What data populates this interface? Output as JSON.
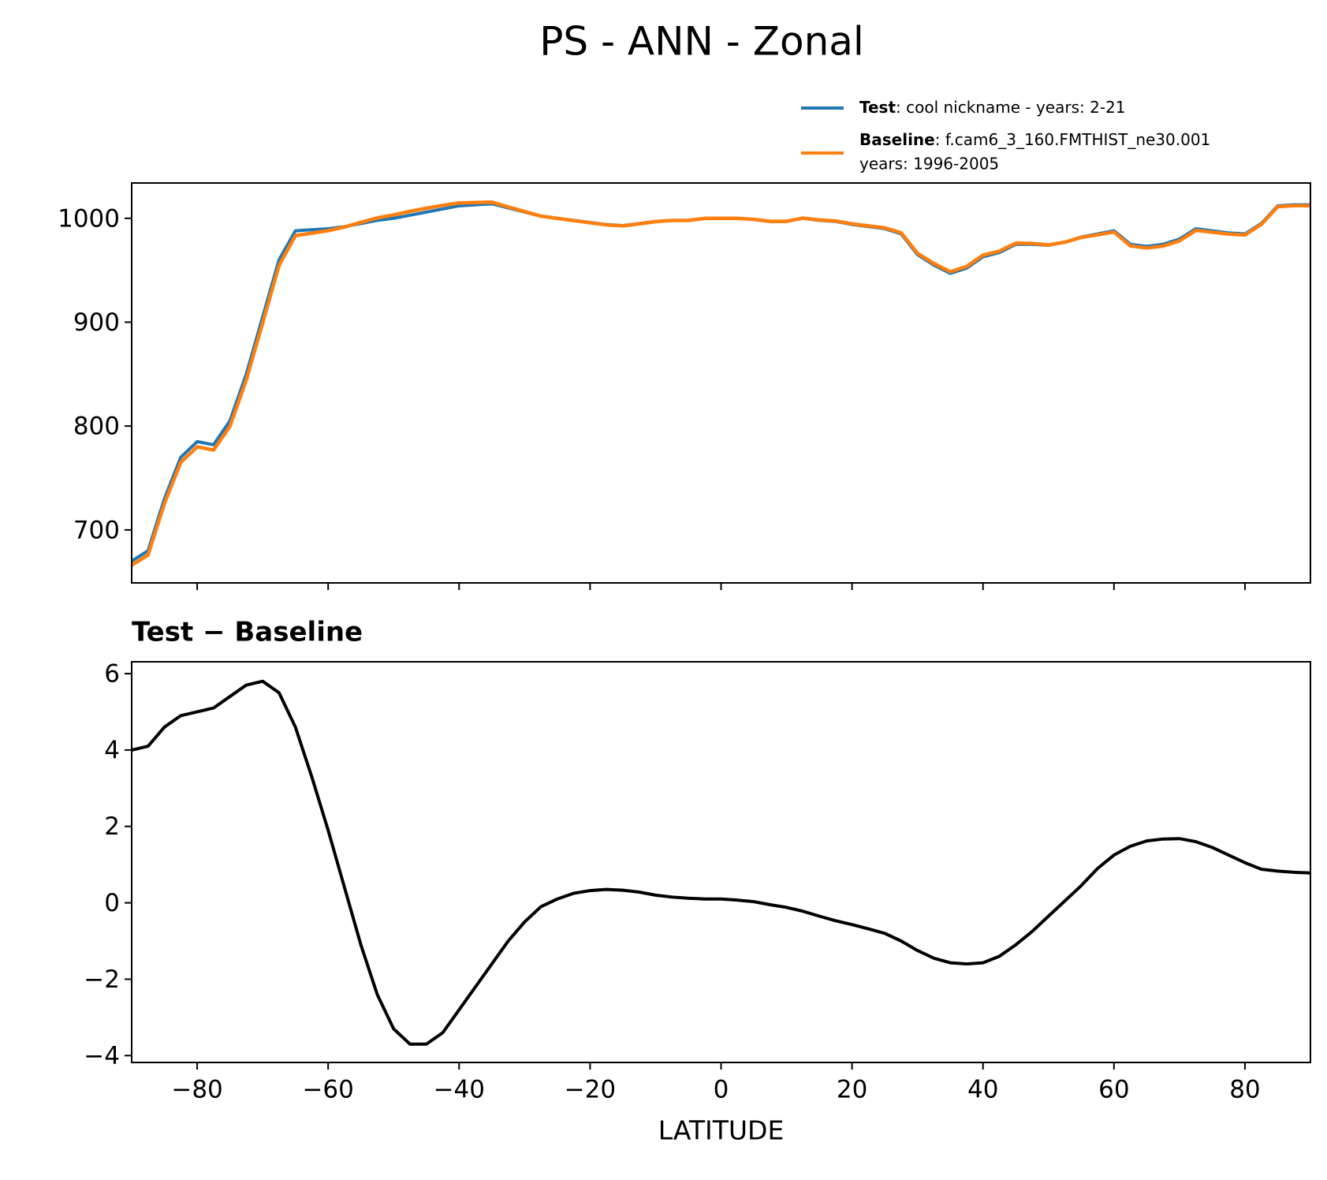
{
  "title": "PS - ANN - Zonal",
  "chart_data": [
    {
      "type": "line",
      "x": [
        -90,
        -87.5,
        -85,
        -82.5,
        -80,
        -77.5,
        -75,
        -72.5,
        -70,
        -67.5,
        -65,
        -62.5,
        -60,
        -57.5,
        -55,
        -52.5,
        -50,
        -47.5,
        -45,
        -42.5,
        -40,
        -37.5,
        -35,
        -32.5,
        -30,
        -27.5,
        -25,
        -22.5,
        -20,
        -17.5,
        -15,
        -12.5,
        -10,
        -7.5,
        -5,
        -2.5,
        0,
        2.5,
        5,
        7.5,
        10,
        12.5,
        15,
        17.5,
        20,
        22.5,
        25,
        27.5,
        30,
        32.5,
        35,
        37.5,
        40,
        42.5,
        45,
        47.5,
        50,
        52.5,
        55,
        57.5,
        60,
        62.5,
        65,
        67.5,
        70,
        72.5,
        75,
        77.5,
        80,
        82.5,
        85,
        87.5,
        90
      ],
      "series": [
        {
          "name": "Test",
          "description": [
            ": cool nickname - years: 2-21"
          ],
          "color": "#1f77b4",
          "values": [
            670,
            680,
            730,
            770,
            785,
            782,
            805,
            850,
            905,
            960,
            988,
            989,
            990,
            992,
            995,
            998,
            1000,
            1003,
            1006,
            1009,
            1012,
            1013,
            1014,
            1010,
            1006,
            1002,
            1000,
            998,
            996,
            994,
            993,
            995,
            997,
            998,
            998,
            1000,
            1000,
            1000,
            999,
            997,
            997,
            1000,
            998,
            997,
            994,
            992,
            990,
            985,
            965,
            955,
            947,
            952,
            963,
            967,
            975,
            975,
            974,
            977,
            982,
            985,
            988,
            975,
            973,
            975,
            980,
            990,
            988,
            986,
            985,
            995,
            1012,
            1013,
            1013
          ]
        },
        {
          "name": "Baseline",
          "description": [
            ": f.cam6_3_160.FMTHIST_ne30.001",
            "years: 1996-2005"
          ],
          "color": "#ff7f0e",
          "values": [
            666.0,
            675.9,
            725.4,
            765.1,
            780.0,
            776.9,
            799.6,
            844.3,
            899.2,
            954.5,
            983.4,
            985.7,
            988.1,
            991.6,
            996.1,
            1000.4,
            1003.3,
            1006.7,
            1009.7,
            1012.4,
            1014.8,
            1015.2,
            1015.6,
            1011.0,
            1006.5,
            1002.1,
            999.9,
            997.8,
            995.7,
            993.7,
            992.7,
            994.7,
            996.8,
            997.9,
            997.9,
            999.9,
            999.9,
            999.9,
            999.0,
            997.1,
            997.1,
            1000.2,
            998.4,
            997.5,
            994.6,
            992.7,
            990.8,
            986.0,
            966.3,
            956.5,
            948.6,
            953.6,
            964.6,
            968.4,
            976.1,
            975.8,
            974.4,
            977.0,
            981.6,
            984.1,
            986.8,
            973.5,
            971.4,
            973.3,
            978.3,
            988.4,
            986.6,
            984.8,
            984.0,
            994.1,
            1011.2,
            1012.2,
            1012.2
          ]
        }
      ],
      "xlim": [
        -90,
        90
      ],
      "xticks": [
        -80,
        -60,
        -40,
        -20,
        0,
        20,
        40,
        60,
        80
      ],
      "ylim": [
        649,
        1034
      ],
      "yticks": [
        700,
        800,
        900,
        1000
      ]
    },
    {
      "type": "line",
      "title": "Test − Baseline",
      "xlabel": "LATITUDE",
      "x": [
        -90,
        -87.5,
        -85,
        -82.5,
        -80,
        -77.5,
        -75,
        -72.5,
        -70,
        -67.5,
        -65,
        -62.5,
        -60,
        -57.5,
        -55,
        -52.5,
        -50,
        -47.5,
        -45,
        -42.5,
        -40,
        -37.5,
        -35,
        -32.5,
        -30,
        -27.5,
        -25,
        -22.5,
        -20,
        -17.5,
        -15,
        -12.5,
        -10,
        -7.5,
        -5,
        -2.5,
        0,
        2.5,
        5,
        7.5,
        10,
        12.5,
        15,
        17.5,
        20,
        22.5,
        25,
        27.5,
        30,
        32.5,
        35,
        37.5,
        40,
        42.5,
        45,
        47.5,
        50,
        52.5,
        55,
        57.5,
        60,
        62.5,
        65,
        67.5,
        70,
        72.5,
        75,
        77.5,
        80,
        82.5,
        85,
        87.5,
        90
      ],
      "series": [
        {
          "color": "#000000",
          "values": [
            4.0,
            4.1,
            4.6,
            4.9,
            5.0,
            5.1,
            5.4,
            5.7,
            5.8,
            5.5,
            4.6,
            3.3,
            1.9,
            0.4,
            -1.1,
            -2.4,
            -3.3,
            -3.7,
            -3.7,
            -3.4,
            -2.8,
            -2.2,
            -1.6,
            -1.0,
            -0.5,
            -0.1,
            0.1,
            0.25,
            0.32,
            0.35,
            0.33,
            0.28,
            0.2,
            0.15,
            0.12,
            0.1,
            0.1,
            0.07,
            0.03,
            -0.05,
            -0.12,
            -0.22,
            -0.35,
            -0.47,
            -0.57,
            -0.68,
            -0.8,
            -1.0,
            -1.25,
            -1.45,
            -1.57,
            -1.6,
            -1.57,
            -1.4,
            -1.1,
            -0.75,
            -0.35,
            0.05,
            0.45,
            0.9,
            1.25,
            1.48,
            1.62,
            1.67,
            1.68,
            1.6,
            1.45,
            1.25,
            1.05,
            0.88,
            0.83,
            0.8,
            0.78
          ]
        }
      ],
      "xlim": [
        -90,
        90
      ],
      "xticks": [
        {
          "value": -80,
          "label": "−80"
        },
        {
          "value": -60,
          "label": "−60"
        },
        {
          "value": -40,
          "label": "−40"
        },
        {
          "value": -20,
          "label": "−20"
        },
        0,
        20,
        40,
        60,
        80
      ],
      "ylim": [
        -4.18,
        6.31
      ],
      "yticks": [
        {
          "value": -4,
          "label": "−4"
        },
        {
          "value": -2,
          "label": "−2"
        },
        0,
        2,
        4,
        6
      ]
    }
  ]
}
